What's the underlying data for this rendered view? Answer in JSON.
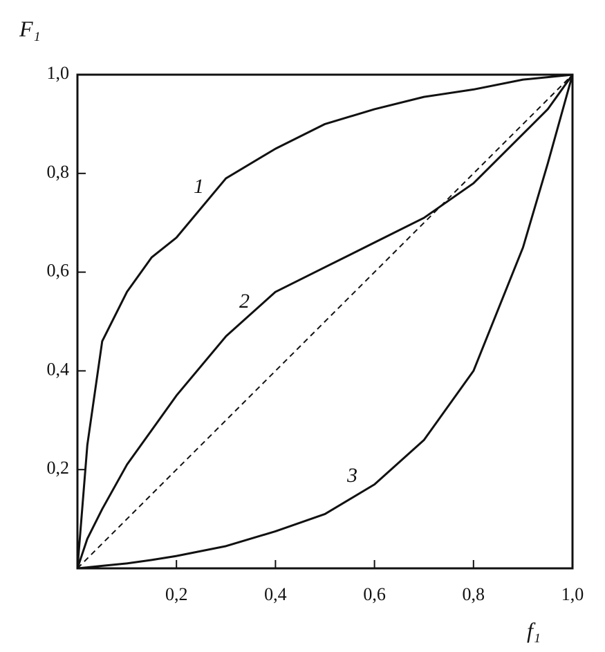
{
  "chart_data": {
    "type": "line",
    "y_label": "F₁",
    "x_label": "f₁",
    "x": [
      0,
      0.02,
      0.05,
      0.1,
      0.15,
      0.2,
      0.3,
      0.4,
      0.5,
      0.6,
      0.7,
      0.8,
      0.9,
      0.95,
      1.0
    ],
    "series": [
      {
        "name": "1",
        "color": "#111111",
        "values": [
          0,
          0.25,
          0.46,
          0.56,
          0.63,
          0.67,
          0.79,
          0.85,
          0.9,
          0.93,
          0.955,
          0.97,
          0.99,
          0.995,
          1.0
        ]
      },
      {
        "name": "2",
        "color": "#111111",
        "values": [
          0,
          0.06,
          0.12,
          0.21,
          0.28,
          0.35,
          0.47,
          0.56,
          0.61,
          0.66,
          0.71,
          0.78,
          0.88,
          0.93,
          1.0
        ]
      },
      {
        "name": "3",
        "color": "#111111",
        "values": [
          0,
          0.002,
          0.005,
          0.01,
          0.017,
          0.025,
          0.045,
          0.075,
          0.11,
          0.17,
          0.26,
          0.4,
          0.65,
          0.82,
          1.0
        ]
      },
      {
        "color": "#111111",
        "dashed": true,
        "values": [
          0,
          0.02,
          0.05,
          0.1,
          0.15,
          0.2,
          0.3,
          0.4,
          0.5,
          0.6,
          0.7,
          0.8,
          0.9,
          0.95,
          1.0
        ]
      }
    ],
    "xlim": [
      0,
      1.0
    ],
    "ylim": [
      0,
      1.0
    ],
    "xticks": [
      {
        "value": 0.2,
        "label": "0,2"
      },
      {
        "value": 0.4,
        "label": "0,4"
      },
      {
        "value": 0.6,
        "label": "0,6"
      },
      {
        "value": 0.8,
        "label": "0,8"
      },
      {
        "value": 1.0,
        "label": "1,0"
      }
    ],
    "yticks": [
      {
        "value": 0.2,
        "label": "0,2"
      },
      {
        "value": 0.4,
        "label": "0,4"
      },
      {
        "value": 0.6,
        "label": "0,6"
      },
      {
        "value": 0.8,
        "label": "0,8"
      },
      {
        "value": 1.0,
        "label": "1,0"
      }
    ],
    "grid": false
  }
}
